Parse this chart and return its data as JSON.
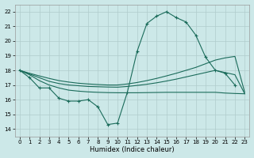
{
  "xlabel": "Humidex (Indice chaleur)",
  "background_color": "#cce8e8",
  "grid_color": "#b0cccc",
  "line_color": "#1a6b5a",
  "xlim": [
    -0.5,
    23.5
  ],
  "ylim": [
    13.5,
    22.5
  ],
  "xticks": [
    0,
    1,
    2,
    3,
    4,
    5,
    6,
    7,
    8,
    9,
    10,
    11,
    12,
    13,
    14,
    15,
    16,
    17,
    18,
    19,
    20,
    21,
    22,
    23
  ],
  "yticks": [
    14,
    15,
    16,
    17,
    18,
    19,
    20,
    21,
    22
  ],
  "curve1": [
    18.0,
    17.5,
    16.8,
    16.8,
    16.1,
    15.9,
    15.9,
    16.0,
    15.5,
    14.3,
    14.4,
    16.5,
    19.3,
    21.2,
    21.7,
    22.0,
    21.6,
    21.3,
    20.4,
    18.9,
    18.0,
    17.8,
    17.0,
    null
  ],
  "curve2": [
    18.0,
    17.7,
    17.3,
    17.0,
    16.8,
    16.65,
    16.58,
    16.53,
    16.5,
    16.48,
    16.47,
    16.47,
    16.47,
    16.48,
    16.49,
    16.5,
    16.5,
    16.5,
    16.5,
    16.5,
    16.5,
    16.45,
    16.42,
    16.4
  ],
  "curve3": [
    18.0,
    17.75,
    17.5,
    17.25,
    17.1,
    17.0,
    16.95,
    16.9,
    16.88,
    16.86,
    16.85,
    16.9,
    16.97,
    17.05,
    17.15,
    17.27,
    17.4,
    17.55,
    17.7,
    17.85,
    18.0,
    17.85,
    17.7,
    16.4
  ],
  "curve4": [
    18.0,
    17.8,
    17.62,
    17.45,
    17.3,
    17.2,
    17.12,
    17.07,
    17.03,
    17.0,
    17.0,
    17.07,
    17.17,
    17.3,
    17.45,
    17.62,
    17.8,
    18.0,
    18.2,
    18.45,
    18.7,
    18.85,
    18.95,
    16.5
  ]
}
